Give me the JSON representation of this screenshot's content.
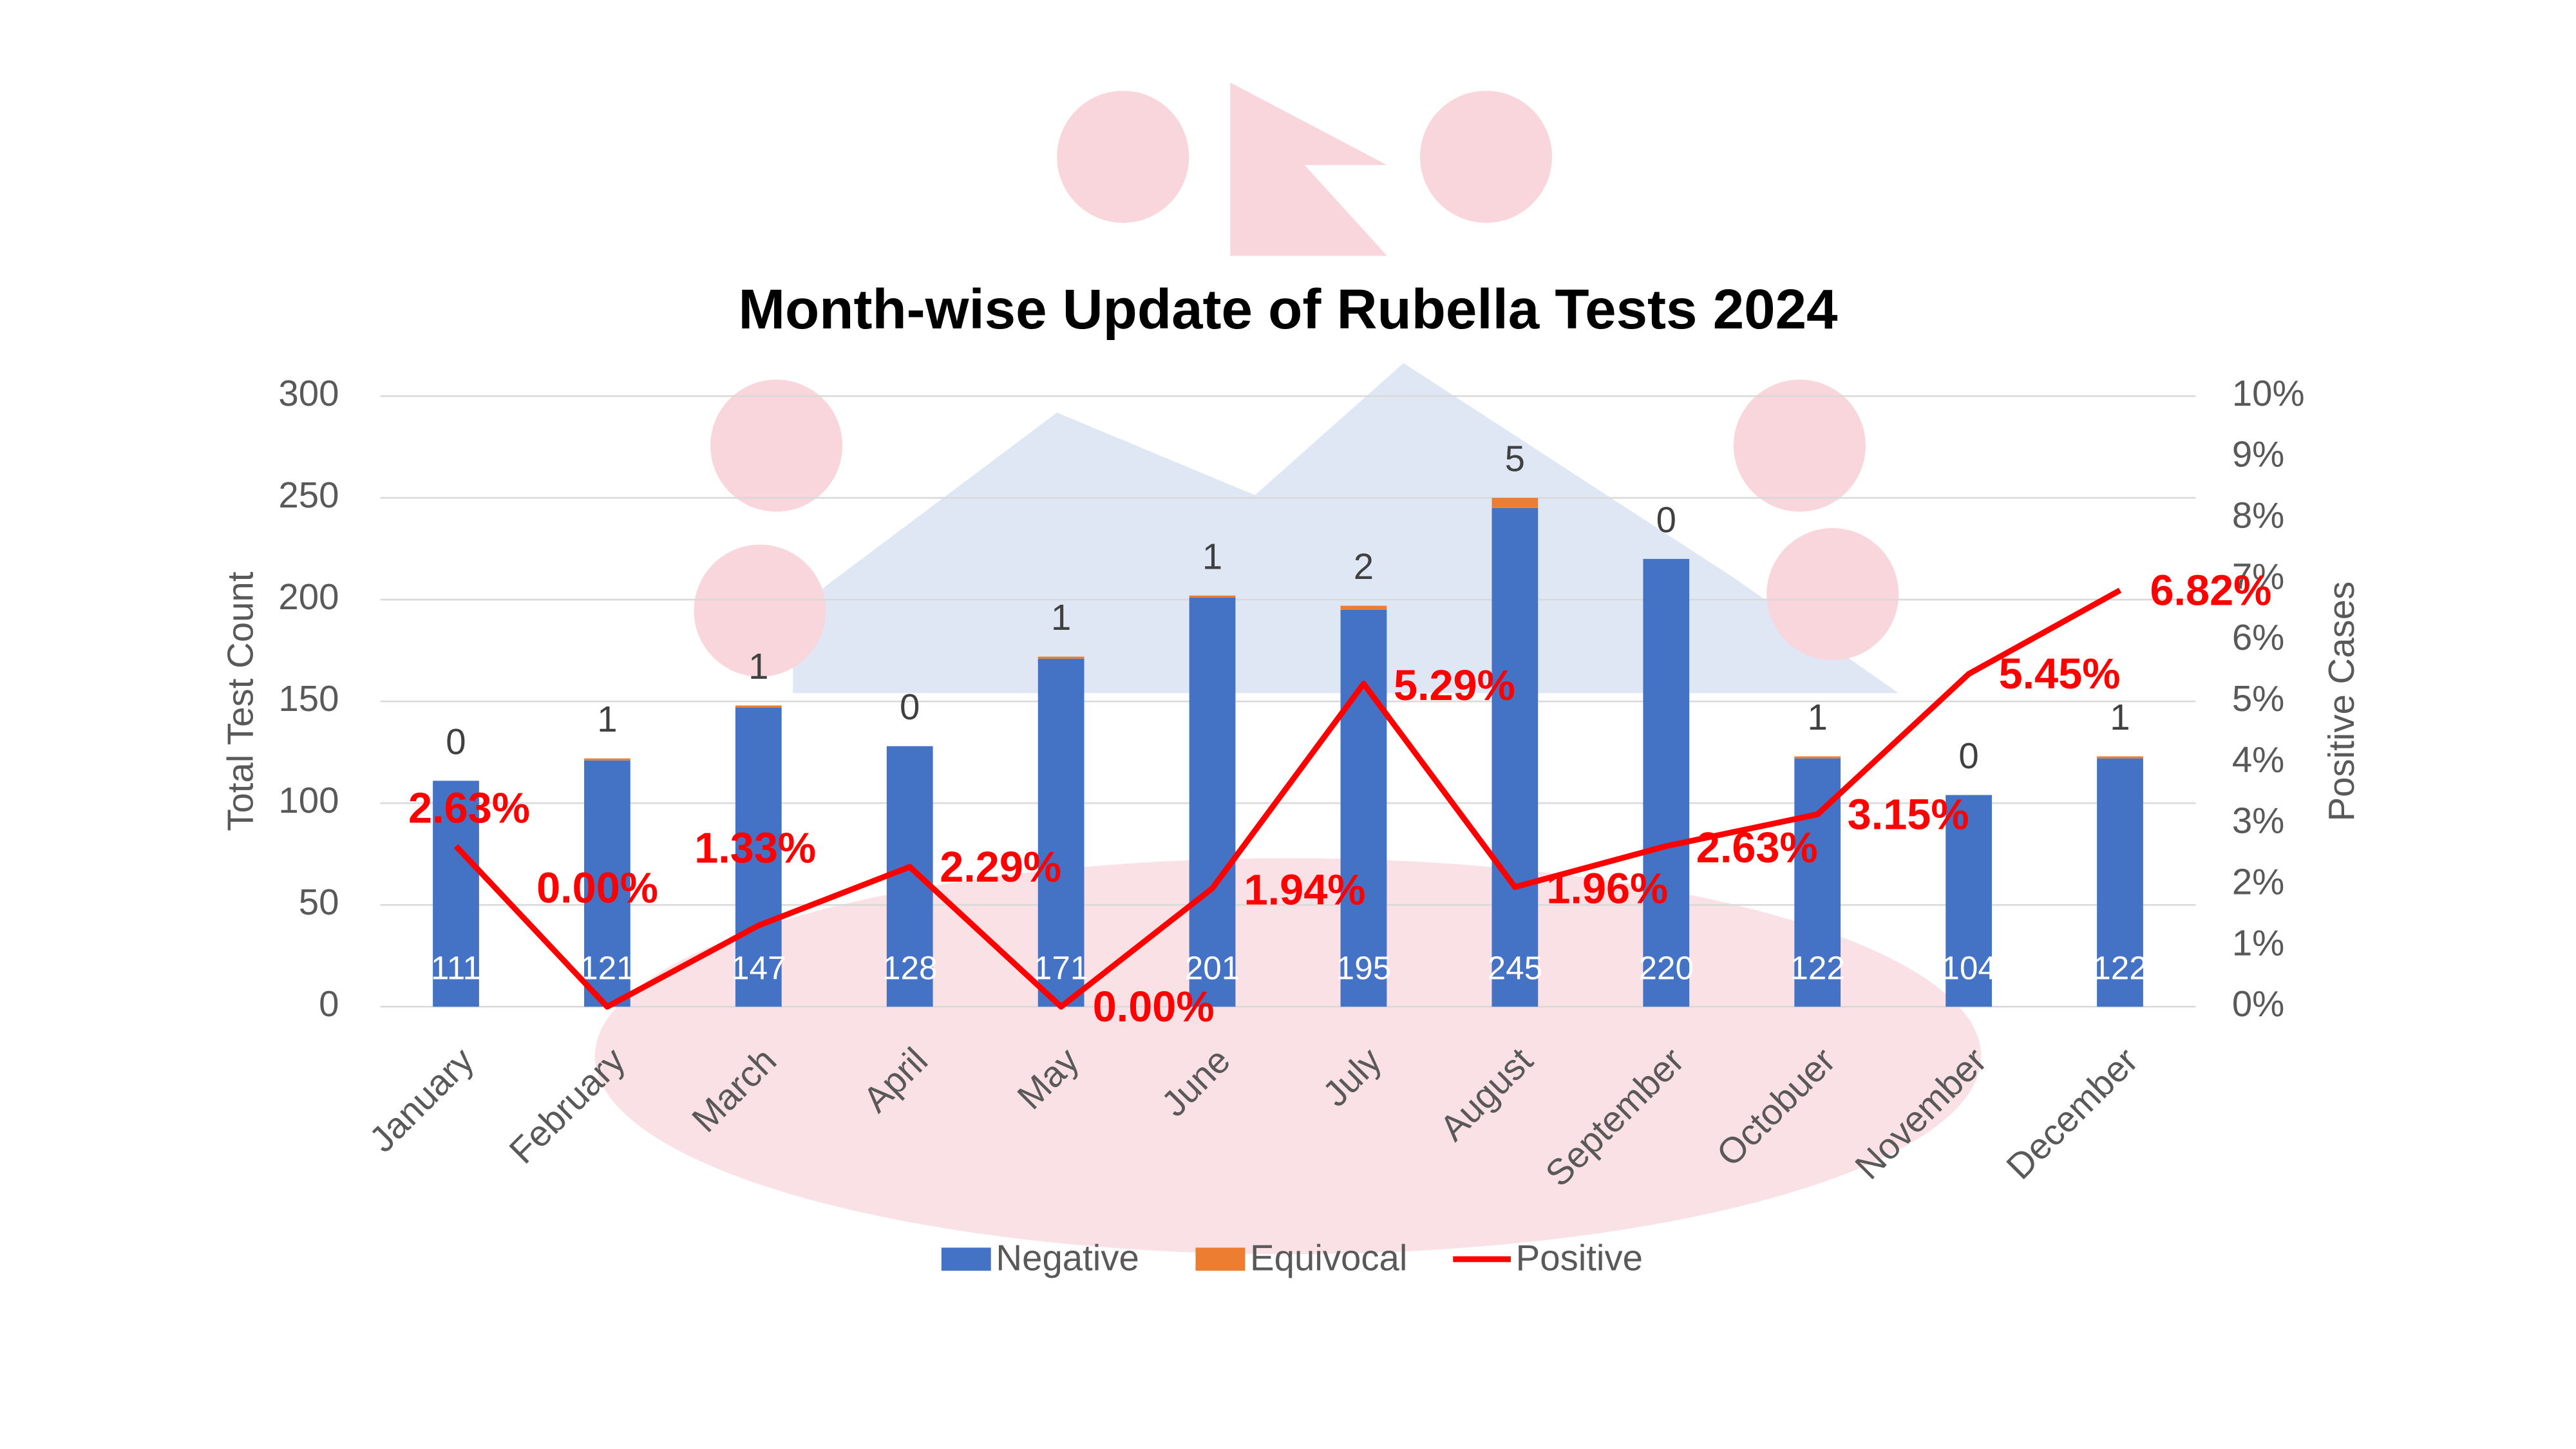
{
  "chart_data": {
    "type": "bar",
    "title": "Month-wise Update of Rubella Tests 2024",
    "y_label": "Total Test Count",
    "y2_label": "Positive Cases",
    "categories": [
      "January",
      "February",
      "March",
      "April",
      "May",
      "June",
      "July",
      "August",
      "September",
      "Octobuer",
      "November",
      "December"
    ],
    "series": [
      {
        "name": "Negative",
        "color": "#4472c4",
        "values": [
          111,
          121,
          147,
          128,
          171,
          201,
          195,
          245,
          220,
          122,
          104,
          122
        ]
      },
      {
        "name": "Equivocal",
        "color": "#ed7d31",
        "values": [
          0,
          1,
          1,
          0,
          1,
          1,
          2,
          5,
          0,
          1,
          0,
          1
        ]
      },
      {
        "name": "Positive",
        "color": "#ff0000",
        "type": "line",
        "axis": "y2",
        "values": [
          2.63,
          0.0,
          1.33,
          2.29,
          0.0,
          1.94,
          5.29,
          1.96,
          2.63,
          3.15,
          5.45,
          6.82
        ],
        "value_labels": [
          "2.63%",
          "0.00%",
          "1.33%",
          "2.29%",
          "0.00%",
          "1.94%",
          "5.29%",
          "1.96%",
          "2.63%",
          "3.15%",
          "5.45%",
          "6.82%"
        ]
      }
    ],
    "ylim": [
      0,
      300
    ],
    "yticks": [
      0,
      50,
      100,
      150,
      200,
      250,
      300
    ],
    "y2lim": [
      0,
      10
    ],
    "y2ticks": [
      {
        "value": 0,
        "label": "0%"
      },
      {
        "value": 1,
        "label": "1%"
      },
      {
        "value": 2,
        "label": "2%"
      },
      {
        "value": 3,
        "label": "3%"
      },
      {
        "value": 4,
        "label": "4%"
      },
      {
        "value": 5,
        "label": "5%"
      },
      {
        "value": 6,
        "label": "6%"
      },
      {
        "value": 7,
        "label": "7%"
      },
      {
        "value": 8,
        "label": "8%"
      },
      {
        "value": 9,
        "label": "9%"
      },
      {
        "value": 10,
        "label": "10%"
      }
    ],
    "grid": true
  }
}
